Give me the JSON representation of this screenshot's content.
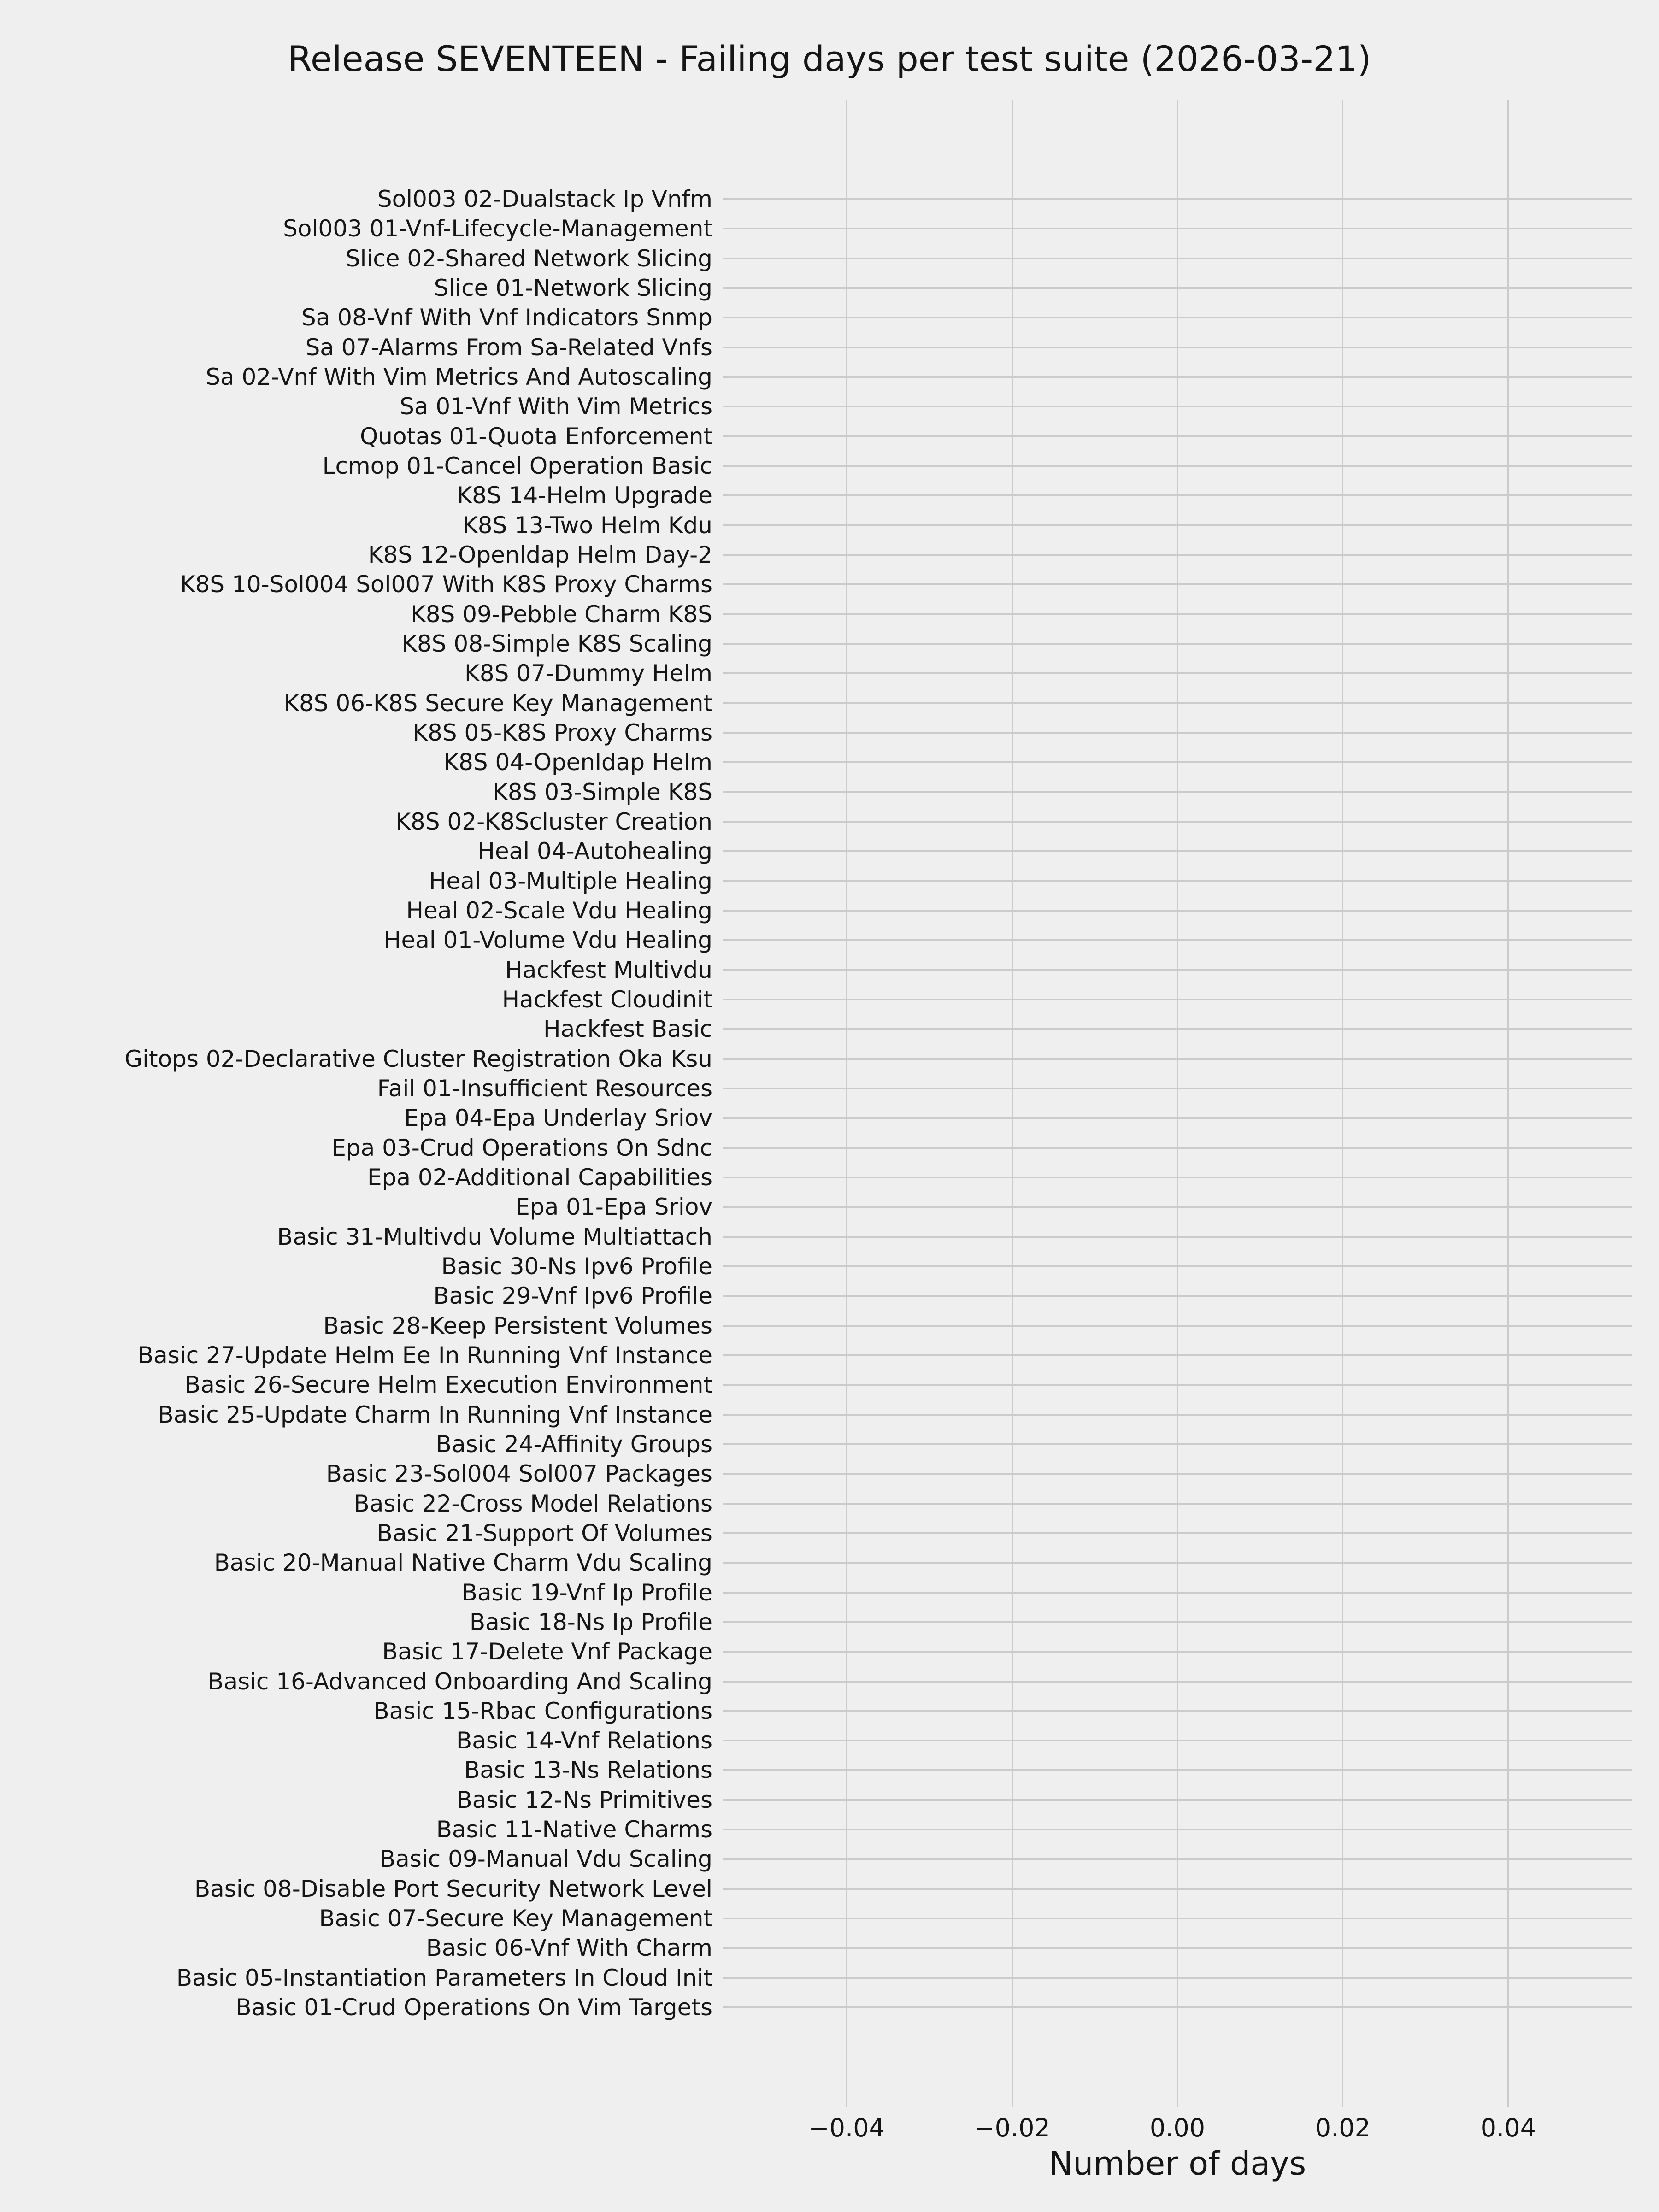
{
  "chart_data": {
    "type": "bar",
    "orientation": "horizontal",
    "title": "Release SEVENTEEN - Failing days per test suite (2026-03-21)",
    "xlabel": "Number of days",
    "ylabel": "",
    "categories": [
      "Sol003 02-Dualstack Ip Vnfm",
      "Sol003 01-Vnf-Lifecycle-Management",
      "Slice 02-Shared Network Slicing",
      "Slice 01-Network Slicing",
      "Sa 08-Vnf With Vnf Indicators Snmp",
      "Sa 07-Alarms From Sa-Related Vnfs",
      "Sa 02-Vnf With Vim Metrics And Autoscaling",
      "Sa 01-Vnf With Vim Metrics",
      "Quotas 01-Quota Enforcement",
      "Lcmop 01-Cancel Operation Basic",
      "K8S 14-Helm Upgrade",
      "K8S 13-Two Helm Kdu",
      "K8S 12-Openldap Helm Day-2",
      "K8S 10-Sol004 Sol007 With K8S Proxy Charms",
      "K8S 09-Pebble Charm K8S",
      "K8S 08-Simple K8S Scaling",
      "K8S 07-Dummy Helm",
      "K8S 06-K8S Secure Key Management",
      "K8S 05-K8S Proxy Charms",
      "K8S 04-Openldap Helm",
      "K8S 03-Simple K8S",
      "K8S 02-K8Scluster Creation",
      "Heal 04-Autohealing",
      "Heal 03-Multiple Healing",
      "Heal 02-Scale Vdu Healing",
      "Heal 01-Volume Vdu Healing",
      "Hackfest Multivdu",
      "Hackfest Cloudinit",
      "Hackfest Basic",
      "Gitops 02-Declarative Cluster Registration Oka Ksu",
      "Fail 01-Insufficient Resources",
      "Epa 04-Epa Underlay Sriov",
      "Epa 03-Crud Operations On Sdnc",
      "Epa 02-Additional Capabilities",
      "Epa 01-Epa Sriov",
      "Basic 31-Multivdu Volume Multiattach",
      "Basic 30-Ns Ipv6 Profile",
      "Basic 29-Vnf Ipv6 Profile",
      "Basic 28-Keep Persistent Volumes",
      "Basic 27-Update Helm Ee In Running Vnf Instance",
      "Basic 26-Secure Helm Execution Environment",
      "Basic 25-Update Charm In Running Vnf Instance",
      "Basic 24-Affinity Groups",
      "Basic 23-Sol004 Sol007 Packages",
      "Basic 22-Cross Model Relations",
      "Basic 21-Support Of Volumes",
      "Basic 20-Manual Native Charm Vdu Scaling",
      "Basic 19-Vnf Ip Profile",
      "Basic 18-Ns Ip Profile",
      "Basic 17-Delete Vnf Package",
      "Basic 16-Advanced Onboarding And Scaling",
      "Basic 15-Rbac Configurations",
      "Basic 14-Vnf Relations",
      "Basic 13-Ns Relations",
      "Basic 12-Ns Primitives",
      "Basic 11-Native Charms",
      "Basic 09-Manual Vdu Scaling",
      "Basic 08-Disable Port Security Network Level",
      "Basic 07-Secure Key Management",
      "Basic 06-Vnf With Charm",
      "Basic 05-Instantiation Parameters In Cloud Init",
      "Basic 01-Crud Operations On Vim Targets"
    ],
    "values": [
      0,
      0,
      0,
      0,
      0,
      0,
      0,
      0,
      0,
      0,
      0,
      0,
      0,
      0,
      0,
      0,
      0,
      0,
      0,
      0,
      0,
      0,
      0,
      0,
      0,
      0,
      0,
      0,
      0,
      0,
      0,
      0,
      0,
      0,
      0,
      0,
      0,
      0,
      0,
      0,
      0,
      0,
      0,
      0,
      0,
      0,
      0,
      0,
      0,
      0,
      0,
      0,
      0,
      0,
      0,
      0,
      0,
      0,
      0,
      0,
      0,
      0
    ],
    "x_ticks": [
      "−0.04",
      "−0.02",
      "0.00",
      "0.02",
      "0.04"
    ],
    "x_tick_values": [
      -0.04,
      -0.02,
      0.0,
      0.02,
      0.04
    ],
    "xlim": [
      -0.055,
      0.055
    ],
    "grid": true,
    "legend": null,
    "colors": {
      "background": "#efefef",
      "grid": "#cbcbcb",
      "text": "#151515"
    }
  }
}
